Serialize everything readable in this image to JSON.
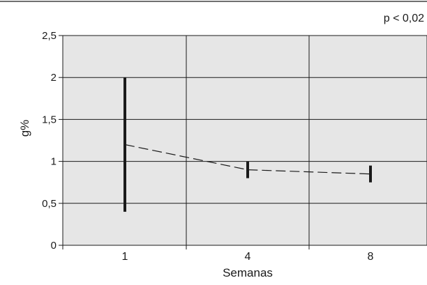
{
  "annotation": "p < 0,02",
  "chart_data": {
    "type": "line",
    "xlabel": "Semanas",
    "ylabel": "g%",
    "categories": [
      "1",
      "4",
      "8"
    ],
    "x": [
      1,
      4,
      8
    ],
    "series": [
      {
        "values": [
          1.2,
          0.9,
          0.85
        ],
        "range_low": [
          0.4,
          0.8,
          0.75
        ],
        "range_high": [
          2.0,
          1.0,
          0.95
        ]
      }
    ],
    "ylim": [
      0,
      2.5
    ],
    "yticks": [
      0,
      0.5,
      1,
      1.5,
      2,
      2.5
    ],
    "ytick_labels": [
      "0",
      "0,5",
      "1",
      "1,5",
      "2",
      "2,5"
    ],
    "grid": true,
    "legend": "none",
    "line_style": "dashed",
    "colors": {
      "plot_background": "#e6e6e6",
      "grid": "#1a1a1a",
      "error_bars": "#1a1a1a",
      "line": "#1a1a1a"
    }
  }
}
